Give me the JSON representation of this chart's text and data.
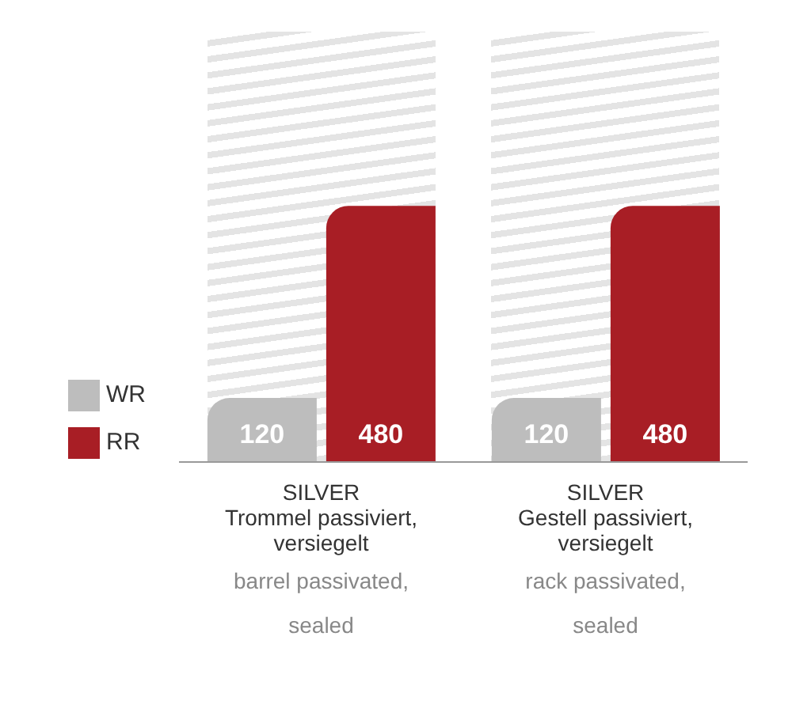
{
  "chart_data": {
    "type": "bar",
    "categories": [
      "SILVER\nTrommel passiviert,\nversiegelt\n\nbarrel passivated,\nsealed",
      "SILVER\nGestell passiviert,\nversiegelt\n\nrack passivated,\nsealed"
    ],
    "series": [
      {
        "name": "WR",
        "color": "#bdbdbd",
        "values": [
          120,
          120
        ]
      },
      {
        "name": "RR",
        "color": "#a81e25",
        "values": [
          480,
          480
        ]
      }
    ],
    "bands": [
      {
        "axis": "x",
        "from": "SILVER\nTrommel passiviert,\nversiegelt\n\nbarrel passivated,\nsealed",
        "to": "SILVER\nTrommel passiviert,\nversiegelt\n\nbarrel passivated,\nsealed",
        "color": "#e4e4e4"
      },
      {
        "axis": "x",
        "from": "SILVER\nGestell passiviert,\nversiegelt\n\nrack passivated,\nsealed",
        "to": "SILVER\nGestell passiviert,\nversiegelt\n\nrack passivated,\nsealed",
        "color": "#e4e4e4"
      }
    ],
    "data_labels": true,
    "legend": "left"
  }
}
